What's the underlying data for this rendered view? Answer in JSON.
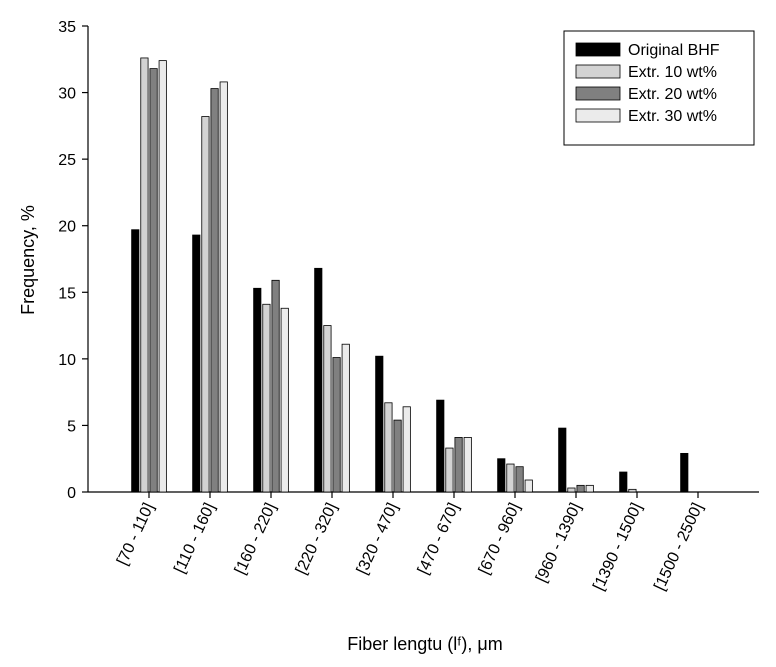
{
  "chart_data": {
    "type": "bar",
    "xlabel": "Fiber lengtu (lᶠ), μm",
    "ylabel": "Frequency, %",
    "categories": [
      "[70 - 110]",
      "[110 - 160]",
      "[160 - 220]",
      "[220 - 320]",
      "[320 - 470]",
      "[470 - 670]",
      "[670 - 960]",
      "[960 - 1390]",
      "[1390 - 1500]",
      "[1500 - 2500]"
    ],
    "series": [
      {
        "name": "Original BHF",
        "color": "#000000",
        "values": [
          19.7,
          19.3,
          15.3,
          16.8,
          10.2,
          6.9,
          2.5,
          4.8,
          1.5,
          2.9
        ]
      },
      {
        "name": "Extr. 10 wt%",
        "color": "#d3d3d3",
        "values": [
          32.6,
          28.2,
          14.1,
          12.5,
          6.7,
          3.3,
          2.1,
          0.3,
          0.2,
          0
        ]
      },
      {
        "name": "Extr. 20 wt%",
        "color": "#808080",
        "values": [
          31.8,
          30.3,
          15.9,
          10.1,
          5.4,
          4.1,
          1.9,
          0.5,
          0,
          0
        ]
      },
      {
        "name": "Extr. 30 wt%",
        "color": "#ebebeb",
        "values": [
          32.4,
          30.8,
          13.8,
          11.1,
          6.4,
          4.1,
          0.9,
          0.5,
          0,
          0
        ]
      }
    ],
    "ylim": [
      0,
      35
    ],
    "yticks": [
      0,
      5,
      10,
      15,
      20,
      25,
      30,
      35
    ],
    "legend": "upper right",
    "grid": false
  }
}
